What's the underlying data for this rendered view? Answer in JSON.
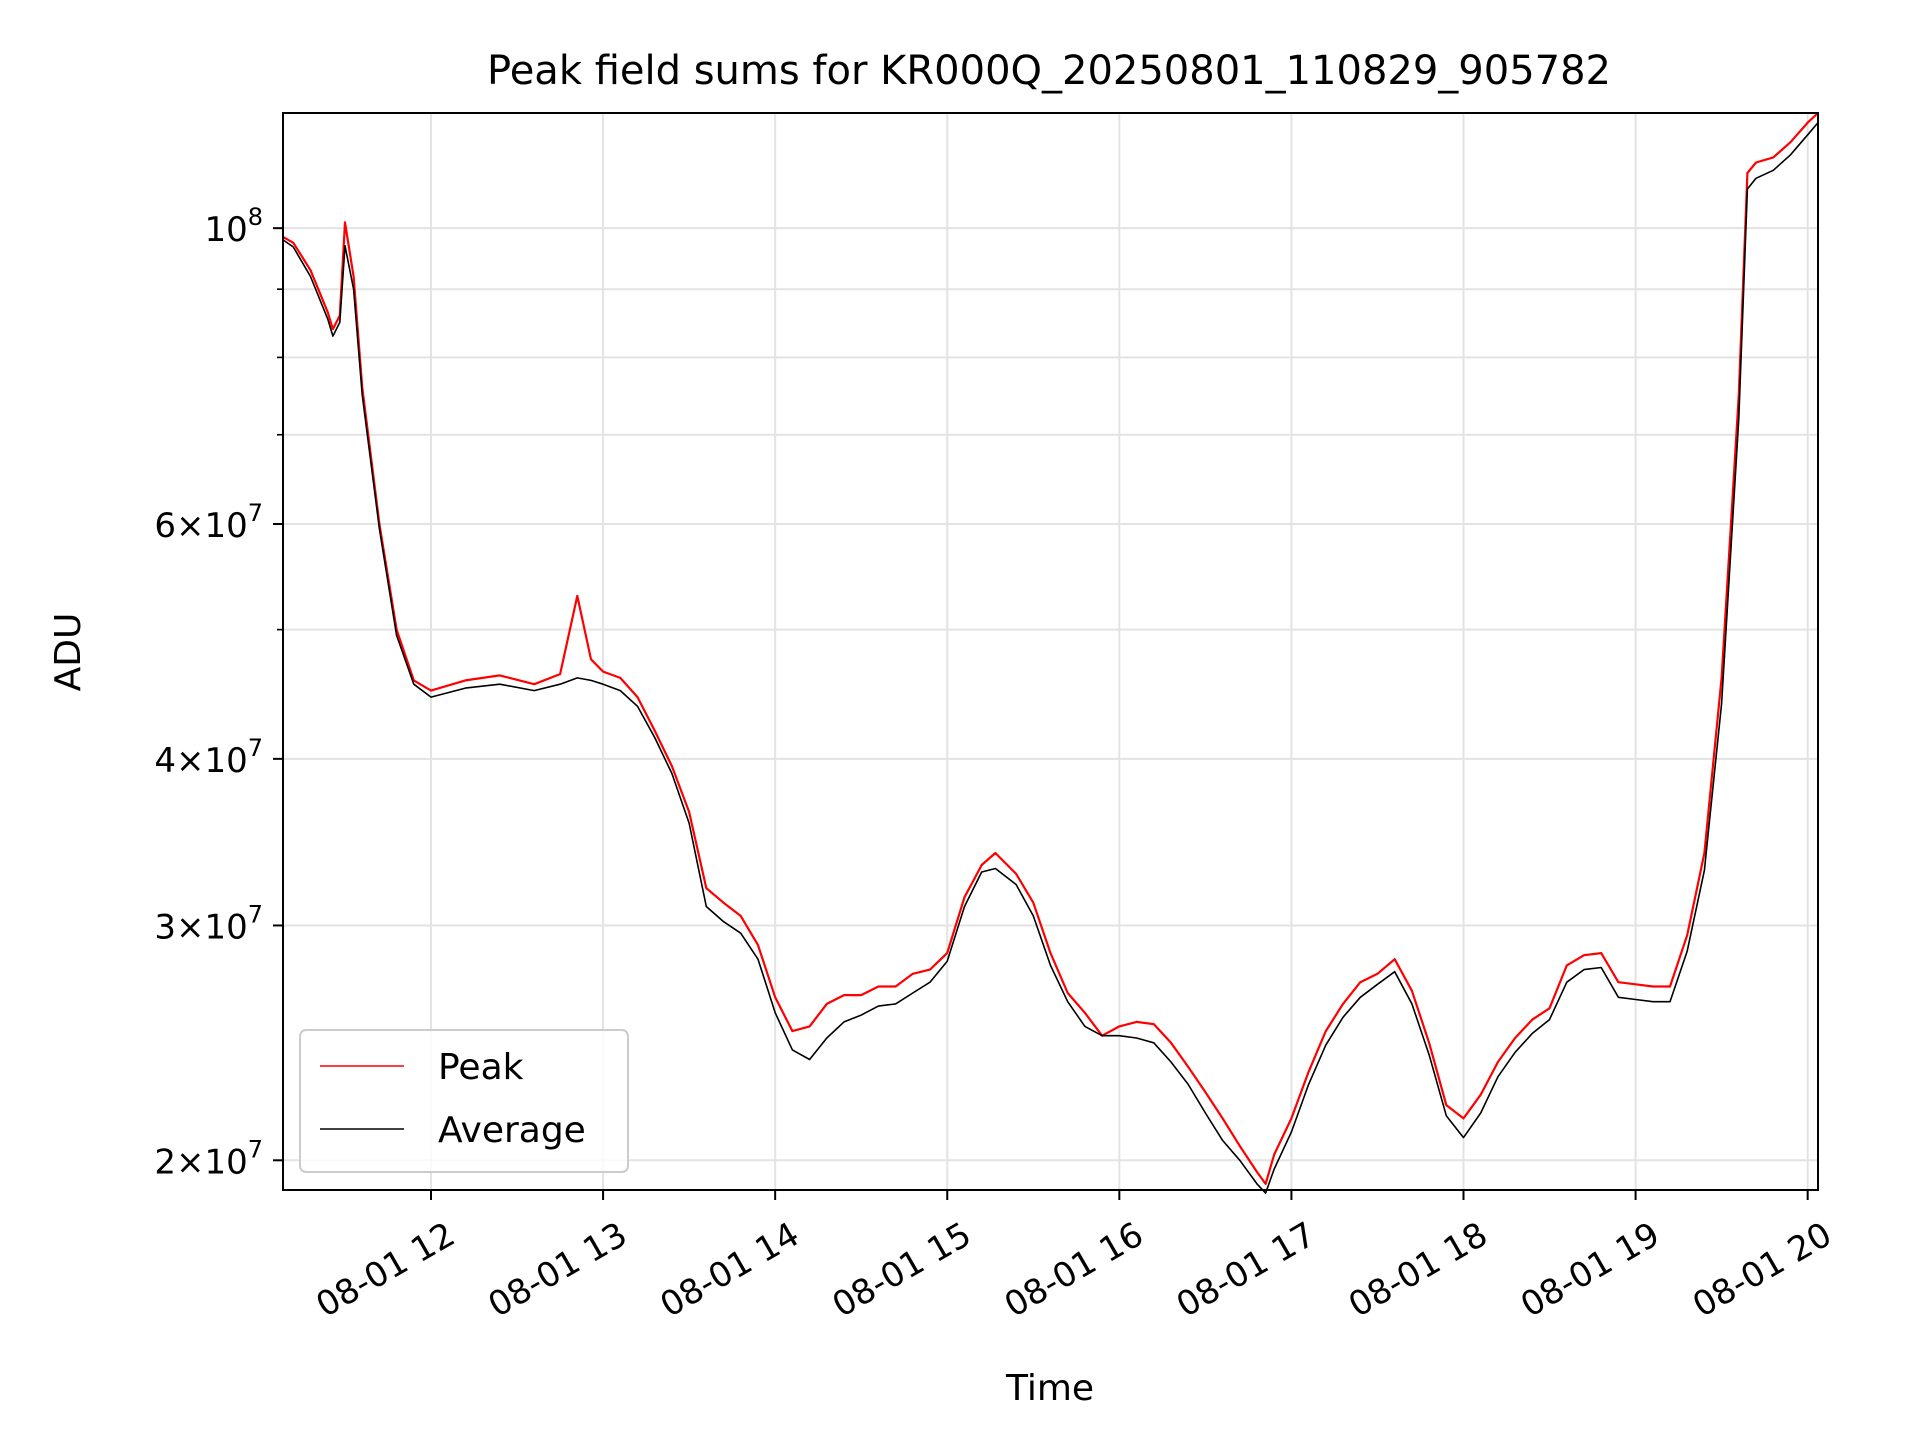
{
  "chart_data": {
    "type": "line",
    "title": "Peak field sums for KR000Q_20250801_110829_905782",
    "xlabel": "Time",
    "ylabel": "ADU",
    "yscale": "log",
    "xlim": [
      11.14,
      20.06
    ],
    "ylim": [
      19000000,
      122000000
    ],
    "grid": true,
    "legend_position": "lower-left",
    "x_ticks": [
      {
        "value": 12,
        "label": "08-01 12"
      },
      {
        "value": 13,
        "label": "08-01 13"
      },
      {
        "value": 14,
        "label": "08-01 14"
      },
      {
        "value": 15,
        "label": "08-01 15"
      },
      {
        "value": 16,
        "label": "08-01 16"
      },
      {
        "value": 17,
        "label": "08-01 17"
      },
      {
        "value": 18,
        "label": "08-01 18"
      },
      {
        "value": 19,
        "label": "08-01 19"
      },
      {
        "value": 20,
        "label": "08-01 20"
      }
    ],
    "y_ticks": [
      {
        "value": 20000000,
        "mantissa": "2",
        "exp": "7"
      },
      {
        "value": 30000000,
        "mantissa": "3",
        "exp": "7"
      },
      {
        "value": 40000000,
        "mantissa": "4",
        "exp": "7"
      },
      {
        "value": 60000000,
        "mantissa": "6",
        "exp": "7"
      },
      {
        "value": 100000000,
        "mantissa": "",
        "exp": "8"
      }
    ],
    "y_minor_ticks": [
      50000000,
      70000000,
      80000000,
      90000000
    ],
    "series": [
      {
        "name": "Peak",
        "color": "#ff0000",
        "x": [
          11.14,
          11.2,
          11.3,
          11.4,
          11.43,
          11.47,
          11.5,
          11.55,
          11.6,
          11.7,
          11.8,
          11.9,
          12.0,
          12.2,
          12.4,
          12.6,
          12.75,
          12.85,
          12.93,
          13.0,
          13.1,
          13.2,
          13.3,
          13.4,
          13.5,
          13.6,
          13.7,
          13.8,
          13.9,
          14.0,
          14.1,
          14.2,
          14.3,
          14.4,
          14.5,
          14.6,
          14.7,
          14.8,
          14.9,
          15.0,
          15.1,
          15.2,
          15.28,
          15.4,
          15.5,
          15.6,
          15.7,
          15.8,
          15.9,
          16.0,
          16.1,
          16.2,
          16.3,
          16.4,
          16.5,
          16.6,
          16.7,
          16.8,
          16.85,
          16.9,
          17.0,
          17.1,
          17.2,
          17.3,
          17.4,
          17.5,
          17.6,
          17.7,
          17.8,
          17.9,
          18.0,
          18.1,
          18.2,
          18.3,
          18.4,
          18.5,
          18.6,
          18.7,
          18.8,
          18.9,
          19.0,
          19.1,
          19.2,
          19.3,
          19.4,
          19.5,
          19.6,
          19.65,
          19.7,
          19.8,
          19.9,
          20.0,
          20.06
        ],
        "y": [
          98500000,
          97500000,
          93000000,
          86500000,
          84000000,
          86000000,
          101000000,
          92000000,
          76000000,
          60000000,
          50000000,
          45800000,
          45000000,
          45800000,
          46200000,
          45500000,
          46300000,
          53000000,
          47500000,
          46500000,
          46000000,
          44500000,
          42000000,
          39500000,
          36500000,
          32000000,
          31200000,
          30500000,
          29000000,
          26500000,
          25000000,
          25200000,
          26200000,
          26600000,
          26600000,
          27000000,
          27000000,
          27600000,
          27800000,
          28600000,
          31500000,
          33300000,
          34000000,
          32800000,
          31200000,
          28600000,
          26700000,
          25800000,
          24800000,
          25200000,
          25400000,
          25300000,
          24500000,
          23500000,
          22500000,
          21500000,
          20500000,
          19600000,
          19200000,
          20200000,
          21500000,
          23300000,
          25000000,
          26200000,
          27200000,
          27600000,
          28300000,
          26800000,
          24500000,
          22000000,
          21500000,
          22400000,
          23700000,
          24700000,
          25500000,
          26000000,
          28000000,
          28500000,
          28600000,
          27200000,
          27100000,
          27000000,
          27000000,
          29500000,
          34000000,
          46000000,
          75000000,
          110000000,
          112000000,
          113000000,
          116000000,
          120000000,
          122000000
        ]
      },
      {
        "name": "Average",
        "color": "#000000",
        "x": [
          11.14,
          11.2,
          11.3,
          11.4,
          11.43,
          11.47,
          11.5,
          11.55,
          11.6,
          11.7,
          11.8,
          11.9,
          12.0,
          12.2,
          12.4,
          12.6,
          12.75,
          12.85,
          12.93,
          13.0,
          13.1,
          13.2,
          13.3,
          13.4,
          13.5,
          13.6,
          13.7,
          13.8,
          13.9,
          14.0,
          14.1,
          14.2,
          14.3,
          14.4,
          14.5,
          14.6,
          14.7,
          14.8,
          14.9,
          15.0,
          15.1,
          15.2,
          15.28,
          15.4,
          15.5,
          15.6,
          15.7,
          15.8,
          15.9,
          16.0,
          16.1,
          16.2,
          16.3,
          16.4,
          16.5,
          16.6,
          16.7,
          16.8,
          16.85,
          16.9,
          17.0,
          17.1,
          17.2,
          17.3,
          17.4,
          17.5,
          17.6,
          17.7,
          17.8,
          17.9,
          18.0,
          18.1,
          18.2,
          18.3,
          18.4,
          18.5,
          18.6,
          18.7,
          18.8,
          18.9,
          19.0,
          19.1,
          19.2,
          19.3,
          19.4,
          19.5,
          19.6,
          19.65,
          19.7,
          19.8,
          19.9,
          20.0,
          20.06
        ],
        "y": [
          98000000,
          96800000,
          92000000,
          85500000,
          83000000,
          85000000,
          97000000,
          90000000,
          75000000,
          59500000,
          49500000,
          45500000,
          44500000,
          45200000,
          45500000,
          45000000,
          45500000,
          46000000,
          45800000,
          45500000,
          45000000,
          43800000,
          41500000,
          39000000,
          35800000,
          31000000,
          30200000,
          29600000,
          28300000,
          25800000,
          24200000,
          23800000,
          24700000,
          25400000,
          25700000,
          26100000,
          26200000,
          26700000,
          27200000,
          28200000,
          31000000,
          32900000,
          33100000,
          32200000,
          30500000,
          28000000,
          26300000,
          25200000,
          24800000,
          24800000,
          24700000,
          24500000,
          23700000,
          22800000,
          21700000,
          20700000,
          20000000,
          19200000,
          18900000,
          19700000,
          21000000,
          22800000,
          24400000,
          25600000,
          26500000,
          27100000,
          27700000,
          26200000,
          24000000,
          21600000,
          20800000,
          21700000,
          23100000,
          24100000,
          24900000,
          25500000,
          27200000,
          27800000,
          27900000,
          26500000,
          26400000,
          26300000,
          26300000,
          28700000,
          33000000,
          44000000,
          72000000,
          107000000,
          109000000,
          110500000,
          113500000,
          117500000,
          120000000
        ]
      }
    ]
  }
}
